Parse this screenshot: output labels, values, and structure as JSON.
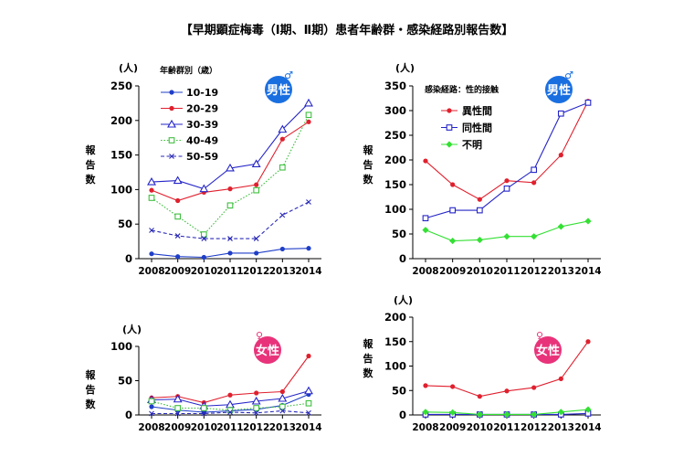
{
  "title": "【早期顕症梅毒（Ⅰ期、Ⅱ期）患者年齢群・感染経路別報告数】",
  "chart_data": [
    {
      "type": "line",
      "badge": "男性",
      "badge_symbol": "♂",
      "badge_color": "#1a6fe0",
      "ylabel": "報告数",
      "unit": "(人)",
      "legend_title": "年齢群別（歳）",
      "legend_placement": "top-left",
      "x": [
        "2008",
        "2009",
        "2010",
        "2011",
        "2012",
        "2013",
        "2014"
      ],
      "ylim": [
        0,
        250
      ],
      "yticks": [
        0,
        50,
        100,
        150,
        200,
        250
      ],
      "grid": false,
      "series": [
        {
          "name": "10-19",
          "color": "#1f3ec8",
          "marker": "dot",
          "dash": "solid",
          "values": [
            7,
            3,
            2,
            8,
            8,
            14,
            15
          ]
        },
        {
          "name": "20-29",
          "color": "#e0202e",
          "marker": "dot",
          "dash": "solid",
          "values": [
            99,
            84,
            96,
            101,
            107,
            173,
            198
          ]
        },
        {
          "name": "30-39",
          "color": "#2424c8",
          "marker": "triangle",
          "dash": "solid",
          "values": [
            111,
            113,
            101,
            131,
            137,
            187,
            225
          ]
        },
        {
          "name": "40-49",
          "color": "#3fbf3f",
          "marker": "square-open",
          "dash": "dotted",
          "values": [
            88,
            61,
            35,
            77,
            99,
            132,
            208
          ]
        },
        {
          "name": "50-59",
          "color": "#2a2ab8",
          "marker": "x",
          "dash": "dashed",
          "values": [
            41,
            33,
            29,
            29,
            29,
            63,
            82
          ]
        }
      ]
    },
    {
      "type": "line",
      "badge": "男性",
      "badge_symbol": "♂",
      "badge_color": "#1a6fe0",
      "ylabel": "報告数",
      "unit": "(人)",
      "legend_title": "感染経路：性的接触",
      "legend_placement": "top-left",
      "x": [
        "2008",
        "2009",
        "2010",
        "2011",
        "2012",
        "2013",
        "2014"
      ],
      "ylim": [
        0,
        350
      ],
      "yticks": [
        0,
        50,
        100,
        150,
        200,
        250,
        300,
        350
      ],
      "grid": false,
      "series": [
        {
          "name": "異性間",
          "color": "#e0202e",
          "marker": "dot",
          "dash": "solid",
          "values": [
            198,
            150,
            120,
            158,
            154,
            210,
            319
          ]
        },
        {
          "name": "同性間",
          "color": "#2424c8",
          "marker": "square-open",
          "dash": "solid",
          "values": [
            82,
            98,
            98,
            142,
            180,
            294,
            316
          ]
        },
        {
          "name": "不明",
          "color": "#33e033",
          "marker": "diamond",
          "dash": "solid",
          "values": [
            58,
            36,
            38,
            45,
            45,
            65,
            76
          ]
        }
      ]
    },
    {
      "type": "line",
      "badge": "女性",
      "badge_symbol": "♀",
      "badge_color": "#e8337a",
      "ylabel": "報告数",
      "unit": "(人)",
      "x": [
        "2008",
        "2009",
        "2010",
        "2011",
        "2012",
        "2013",
        "2014"
      ],
      "ylim": [
        0,
        100
      ],
      "yticks": [
        0,
        50,
        100
      ],
      "grid": false,
      "series": [
        {
          "color": "#1f3ec8",
          "marker": "dot",
          "dash": "solid",
          "values": [
            12,
            7,
            4,
            6,
            8,
            14,
            30
          ]
        },
        {
          "color": "#e0202e",
          "marker": "dot",
          "dash": "solid",
          "values": [
            25,
            27,
            18,
            29,
            32,
            34,
            86
          ]
        },
        {
          "color": "#2424c8",
          "marker": "triangle",
          "dash": "solid",
          "values": [
            22,
            23,
            13,
            15,
            20,
            24,
            35
          ]
        },
        {
          "color": "#3fbf3f",
          "marker": "square-open",
          "dash": "dotted",
          "values": [
            20,
            10,
            10,
            7,
            10,
            12,
            17
          ]
        },
        {
          "color": "#2a2ab8",
          "marker": "x",
          "dash": "dashed",
          "values": [
            2,
            2,
            2,
            4,
            3,
            6,
            3
          ]
        }
      ]
    },
    {
      "type": "line",
      "badge": "女性",
      "badge_symbol": "♀",
      "badge_color": "#e8337a",
      "ylabel": "報告数",
      "unit": "(人)",
      "x": [
        "2008",
        "2009",
        "2010",
        "2011",
        "2012",
        "2013",
        "2014"
      ],
      "ylim": [
        0,
        200
      ],
      "yticks": [
        0,
        50,
        100,
        150,
        200
      ],
      "grid": false,
      "series": [
        {
          "color": "#e0202e",
          "marker": "dot",
          "dash": "solid",
          "values": [
            60,
            58,
            38,
            49,
            56,
            74,
            150
          ]
        },
        {
          "color": "#2424c8",
          "marker": "square-open",
          "dash": "solid",
          "values": [
            1,
            1,
            1,
            1,
            1,
            1,
            3
          ]
        },
        {
          "color": "#33e033",
          "marker": "diamond",
          "dash": "solid",
          "values": [
            6,
            5,
            1,
            1,
            1,
            6,
            11
          ]
        }
      ]
    }
  ]
}
